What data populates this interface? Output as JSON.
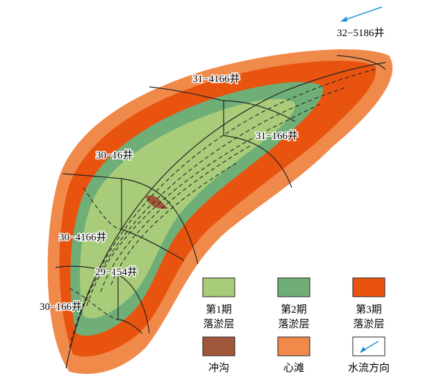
{
  "wells": [
    "32−5186井",
    "31−4166井",
    "31−166井",
    "30−16井",
    "30−4166井",
    "29−154井",
    "30−166井"
  ],
  "legend": [
    {
      "lines": [
        "第1期",
        "落淤层"
      ]
    },
    {
      "lines": [
        "第2期",
        "落淤层"
      ]
    },
    {
      "lines": [
        "第3期",
        "落淤层"
      ]
    },
    {
      "lines": [
        "冲沟"
      ]
    },
    {
      "lines": [
        "心滩"
      ]
    },
    {
      "lines": [
        "水流方向"
      ]
    }
  ]
}
